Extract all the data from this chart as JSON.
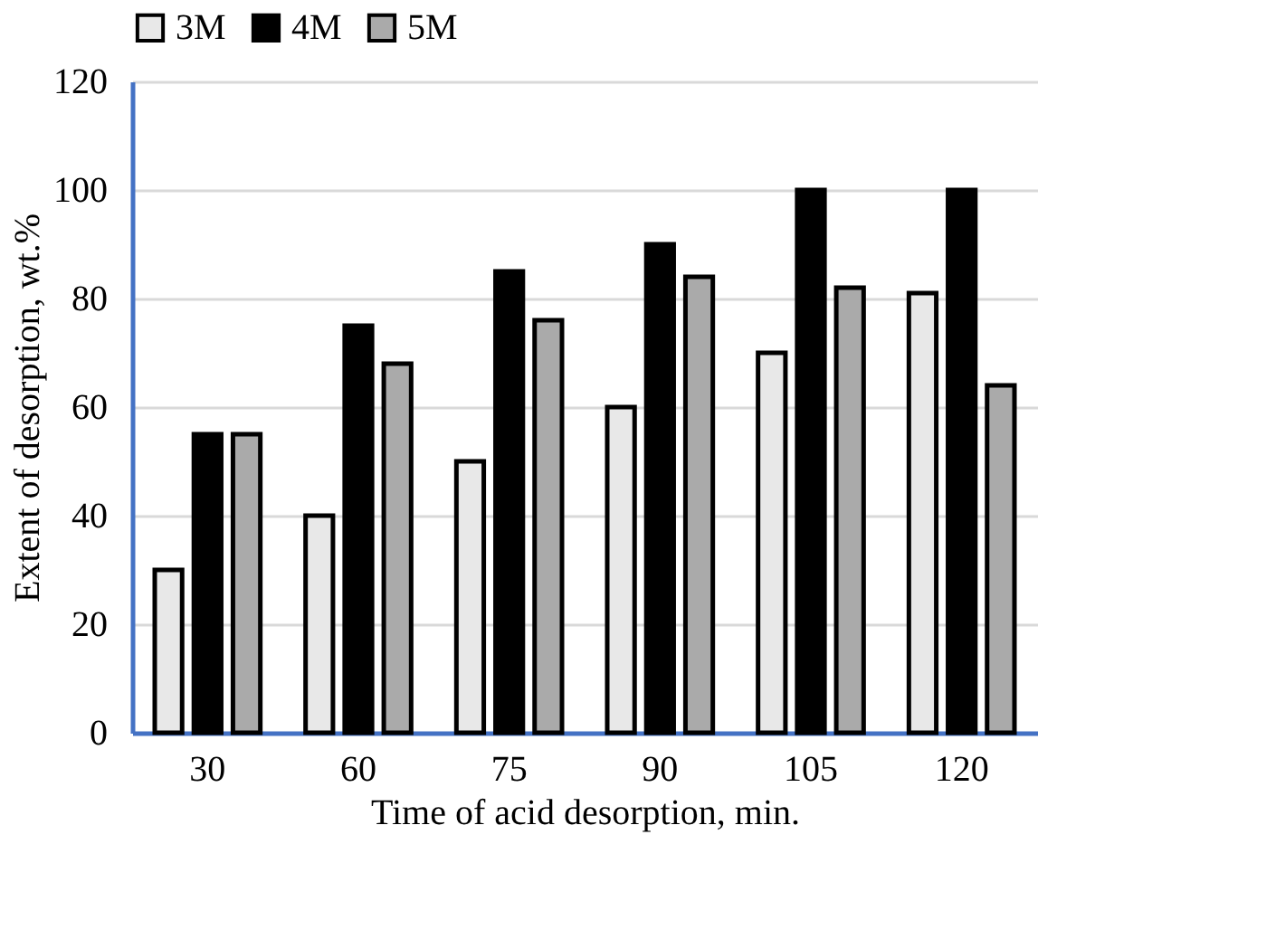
{
  "chart_data": {
    "type": "bar",
    "xlabel": "Time of acid desorption, min.",
    "ylabel": "Extent of desorption, wt.%",
    "categories": [
      "30",
      "60",
      "75",
      "90",
      "105",
      "120"
    ],
    "series": [
      {
        "name": "3M",
        "color": "#e8e8e8",
        "values": [
          30,
          40,
          50,
          60,
          70,
          81
        ]
      },
      {
        "name": "4M",
        "color": "#000000",
        "values": [
          55,
          75,
          85,
          90,
          100,
          100
        ]
      },
      {
        "name": "5M",
        "color": "#aaaaaa",
        "values": [
          55,
          68,
          76,
          84,
          82,
          64
        ]
      }
    ],
    "ylim": [
      0,
      120
    ],
    "yticks": [
      0,
      20,
      40,
      60,
      80,
      100,
      120
    ],
    "grid": "y",
    "legend": "top"
  }
}
